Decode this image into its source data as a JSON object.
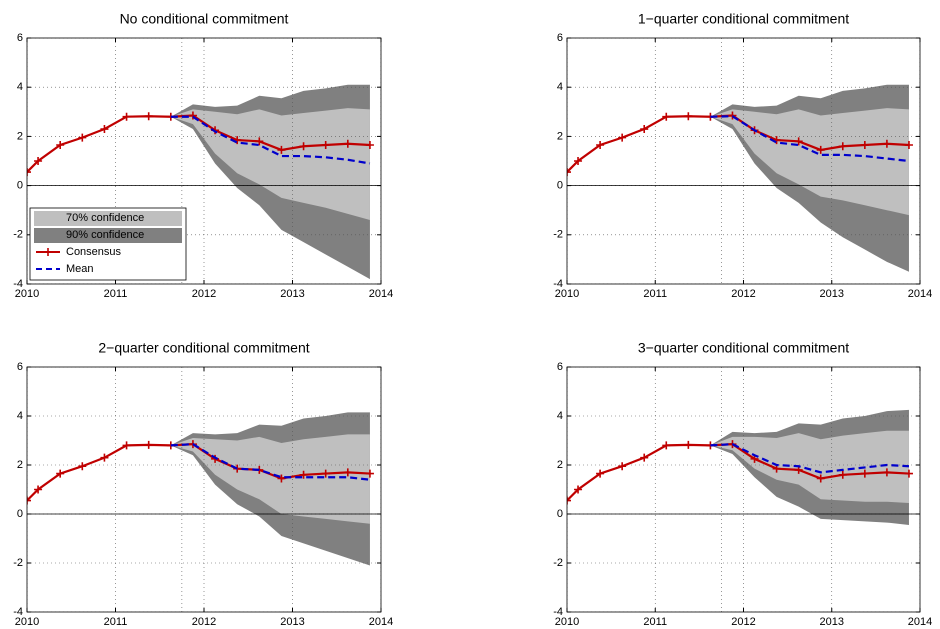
{
  "chart_data": [
    {
      "type": "fan",
      "title": "No conditional commitment",
      "xlim": [
        2010,
        2014
      ],
      "xticks": [
        2010,
        2011,
        2012,
        2013,
        2014
      ],
      "ylim": [
        -4,
        6
      ],
      "yticks": [
        -4,
        -2,
        0,
        2,
        4,
        6
      ],
      "grid": true,
      "vline": 2011.75,
      "hline": 0,
      "legend": "lower-left",
      "series": [
        {
          "name": "90% confidence",
          "color": "#808080",
          "style": "band",
          "x": [
            2011.625,
            2011.875,
            2012.125,
            2012.375,
            2012.625,
            2012.875,
            2013.125,
            2013.375,
            2013.625,
            2013.875
          ],
          "upper": [
            2.8,
            3.3,
            3.2,
            3.25,
            3.65,
            3.55,
            3.85,
            3.95,
            4.1,
            4.1
          ],
          "lower": [
            2.8,
            2.3,
            0.9,
            -0.1,
            -0.8,
            -1.8,
            -2.3,
            -2.8,
            -3.3,
            -3.8
          ]
        },
        {
          "name": "70% confidence",
          "color": "#bfbfbf",
          "style": "band",
          "x": [
            2011.625,
            2011.875,
            2012.125,
            2012.375,
            2012.625,
            2012.875,
            2013.125,
            2013.375,
            2013.625,
            2013.875
          ],
          "upper": [
            2.8,
            3.1,
            3.0,
            2.9,
            3.1,
            2.85,
            2.95,
            3.05,
            3.15,
            3.1
          ],
          "lower": [
            2.8,
            2.5,
            1.3,
            0.5,
            0.05,
            -0.5,
            -0.7,
            -0.9,
            -1.15,
            -1.4
          ]
        },
        {
          "name": "Consensus",
          "color": "#c00000",
          "style": "marker-line",
          "x": [
            2010,
            2010.125,
            2010.375,
            2010.625,
            2010.875,
            2011.125,
            2011.375,
            2011.625,
            2011.875,
            2012.125,
            2012.375,
            2012.625,
            2012.875,
            2013.125,
            2013.375,
            2013.625,
            2013.875
          ],
          "values": [
            0.55,
            1.0,
            1.65,
            1.95,
            2.3,
            2.8,
            2.82,
            2.8,
            2.85,
            2.25,
            1.85,
            1.8,
            1.45,
            1.6,
            1.65,
            1.7,
            1.65
          ]
        },
        {
          "name": "Mean",
          "color": "#0000cc",
          "style": "dashed",
          "x": [
            2011.625,
            2011.875,
            2012.125,
            2012.375,
            2012.625,
            2012.875,
            2013.125,
            2013.375,
            2013.625,
            2013.875
          ],
          "values": [
            2.8,
            2.8,
            2.2,
            1.75,
            1.65,
            1.2,
            1.2,
            1.15,
            1.05,
            0.9
          ]
        }
      ]
    },
    {
      "type": "fan",
      "title": "1−quarter conditional commitment",
      "xlim": [
        2010,
        2014
      ],
      "xticks": [
        2010,
        2011,
        2012,
        2013,
        2014
      ],
      "ylim": [
        -4,
        6
      ],
      "yticks": [
        -4,
        -2,
        0,
        2,
        4,
        6
      ],
      "grid": true,
      "vline": 2011.75,
      "hline": 0,
      "series": [
        {
          "color": "#808080",
          "style": "band",
          "x": [
            2011.625,
            2011.875,
            2012.125,
            2012.375,
            2012.625,
            2012.875,
            2013.125,
            2013.375,
            2013.625,
            2013.875
          ],
          "upper": [
            2.8,
            3.3,
            3.2,
            3.25,
            3.65,
            3.55,
            3.85,
            3.95,
            4.1,
            4.1
          ],
          "lower": [
            2.8,
            2.3,
            0.9,
            -0.1,
            -0.7,
            -1.5,
            -2.1,
            -2.6,
            -3.1,
            -3.5
          ]
        },
        {
          "color": "#bfbfbf",
          "style": "band",
          "x": [
            2011.625,
            2011.875,
            2012.125,
            2012.375,
            2012.625,
            2012.875,
            2013.125,
            2013.375,
            2013.625,
            2013.875
          ],
          "upper": [
            2.8,
            3.1,
            3.0,
            2.9,
            3.1,
            2.85,
            2.95,
            3.05,
            3.15,
            3.1
          ],
          "lower": [
            2.8,
            2.5,
            1.3,
            0.5,
            0.05,
            -0.45,
            -0.6,
            -0.8,
            -1.0,
            -1.2
          ]
        },
        {
          "color": "#c00000",
          "style": "marker-line",
          "x": [
            2010,
            2010.125,
            2010.375,
            2010.625,
            2010.875,
            2011.125,
            2011.375,
            2011.625,
            2011.875,
            2012.125,
            2012.375,
            2012.625,
            2012.875,
            2013.125,
            2013.375,
            2013.625,
            2013.875
          ],
          "values": [
            0.55,
            1.0,
            1.65,
            1.95,
            2.3,
            2.8,
            2.82,
            2.8,
            2.85,
            2.25,
            1.85,
            1.8,
            1.45,
            1.6,
            1.65,
            1.7,
            1.65
          ]
        },
        {
          "color": "#0000cc",
          "style": "dashed",
          "x": [
            2011.625,
            2011.875,
            2012.125,
            2012.375,
            2012.625,
            2012.875,
            2013.125,
            2013.375,
            2013.625,
            2013.875
          ],
          "values": [
            2.8,
            2.82,
            2.25,
            1.75,
            1.65,
            1.25,
            1.25,
            1.2,
            1.1,
            1.0
          ]
        }
      ]
    },
    {
      "type": "fan",
      "title": "2−quarter conditional commitment",
      "xlim": [
        2010,
        2014
      ],
      "xticks": [
        2010,
        2011,
        2012,
        2013,
        2014
      ],
      "ylim": [
        -4,
        6
      ],
      "yticks": [
        -4,
        -2,
        0,
        2,
        4,
        6
      ],
      "grid": true,
      "vline": 2011.75,
      "hline": 0,
      "series": [
        {
          "color": "#808080",
          "style": "band",
          "x": [
            2011.625,
            2011.875,
            2012.125,
            2012.375,
            2012.625,
            2012.875,
            2013.125,
            2013.375,
            2013.625,
            2013.875
          ],
          "upper": [
            2.8,
            3.3,
            3.25,
            3.3,
            3.65,
            3.6,
            3.9,
            4.0,
            4.15,
            4.15
          ],
          "lower": [
            2.8,
            2.4,
            1.2,
            0.4,
            -0.1,
            -0.9,
            -1.2,
            -1.5,
            -1.8,
            -2.1
          ]
        },
        {
          "color": "#bfbfbf",
          "style": "band",
          "x": [
            2011.625,
            2011.875,
            2012.125,
            2012.375,
            2012.625,
            2012.875,
            2013.125,
            2013.375,
            2013.625,
            2013.875
          ],
          "upper": [
            2.8,
            3.1,
            3.05,
            3.0,
            3.15,
            2.9,
            3.05,
            3.15,
            3.25,
            3.25
          ],
          "lower": [
            2.8,
            2.55,
            1.6,
            1.0,
            0.6,
            0.0,
            -0.1,
            -0.2,
            -0.3,
            -0.4
          ]
        },
        {
          "color": "#c00000",
          "style": "marker-line",
          "x": [
            2010,
            2010.125,
            2010.375,
            2010.625,
            2010.875,
            2011.125,
            2011.375,
            2011.625,
            2011.875,
            2012.125,
            2012.375,
            2012.625,
            2012.875,
            2013.125,
            2013.375,
            2013.625,
            2013.875
          ],
          "values": [
            0.55,
            1.0,
            1.65,
            1.95,
            2.3,
            2.8,
            2.82,
            2.8,
            2.85,
            2.25,
            1.85,
            1.8,
            1.45,
            1.6,
            1.65,
            1.7,
            1.65
          ]
        },
        {
          "color": "#0000cc",
          "style": "dashed",
          "x": [
            2011.625,
            2011.875,
            2012.125,
            2012.375,
            2012.625,
            2012.875,
            2013.125,
            2013.375,
            2013.625,
            2013.875
          ],
          "values": [
            2.8,
            2.85,
            2.3,
            1.85,
            1.8,
            1.5,
            1.5,
            1.5,
            1.5,
            1.4
          ]
        }
      ]
    },
    {
      "type": "fan",
      "title": "3−quarter conditional commitment",
      "xlim": [
        2010,
        2014
      ],
      "xticks": [
        2010,
        2011,
        2012,
        2013,
        2014
      ],
      "ylim": [
        -4,
        6
      ],
      "yticks": [
        -4,
        -2,
        0,
        2,
        4,
        6
      ],
      "grid": true,
      "vline": 2011.75,
      "hline": 0,
      "series": [
        {
          "color": "#808080",
          "style": "band",
          "x": [
            2011.625,
            2011.875,
            2012.125,
            2012.375,
            2012.625,
            2012.875,
            2013.125,
            2013.375,
            2013.625,
            2013.875
          ],
          "upper": [
            2.8,
            3.35,
            3.3,
            3.35,
            3.7,
            3.65,
            3.9,
            4.0,
            4.2,
            4.25
          ],
          "lower": [
            2.8,
            2.45,
            1.5,
            0.7,
            0.3,
            -0.2,
            -0.25,
            -0.3,
            -0.35,
            -0.45
          ]
        },
        {
          "color": "#bfbfbf",
          "style": "band",
          "x": [
            2011.625,
            2011.875,
            2012.125,
            2012.375,
            2012.625,
            2012.875,
            2013.125,
            2013.375,
            2013.625,
            2013.875
          ],
          "upper": [
            2.8,
            3.15,
            3.15,
            3.1,
            3.3,
            3.05,
            3.2,
            3.3,
            3.4,
            3.4
          ],
          "lower": [
            2.8,
            2.6,
            1.85,
            1.4,
            1.2,
            0.6,
            0.55,
            0.5,
            0.5,
            0.45
          ]
        },
        {
          "color": "#c00000",
          "style": "marker-line",
          "x": [
            2010,
            2010.125,
            2010.375,
            2010.625,
            2010.875,
            2011.125,
            2011.375,
            2011.625,
            2011.875,
            2012.125,
            2012.375,
            2012.625,
            2012.875,
            2013.125,
            2013.375,
            2013.625,
            2013.875
          ],
          "values": [
            0.55,
            1.0,
            1.65,
            1.95,
            2.3,
            2.8,
            2.82,
            2.8,
            2.85,
            2.25,
            1.85,
            1.8,
            1.45,
            1.6,
            1.65,
            1.7,
            1.65
          ]
        },
        {
          "color": "#0000cc",
          "style": "dashed",
          "x": [
            2011.625,
            2011.875,
            2012.125,
            2012.375,
            2012.625,
            2012.875,
            2013.125,
            2013.375,
            2013.625,
            2013.875
          ],
          "values": [
            2.8,
            2.85,
            2.4,
            2.0,
            1.95,
            1.7,
            1.8,
            1.9,
            2.0,
            1.95
          ]
        }
      ]
    }
  ]
}
